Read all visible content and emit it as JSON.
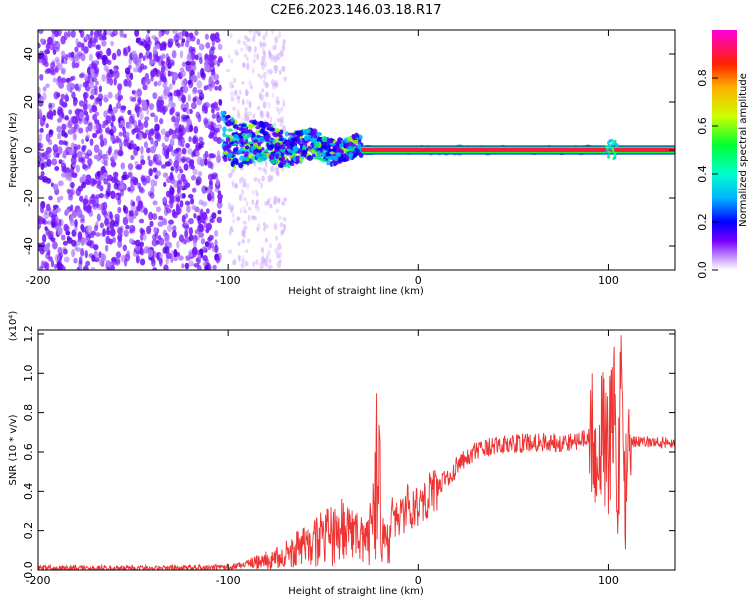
{
  "title": "C2E6.2023.146.03.18.R17",
  "chart_data": [
    {
      "type": "heatmap",
      "xlabel": "Height of straight line (km)",
      "ylabel": "Frequency (Hz)",
      "xlim": [
        -200,
        135
      ],
      "ylim": [
        -50,
        50
      ],
      "xticks": [
        -200,
        -100,
        0,
        100
      ],
      "yticks": [
        -40,
        -20,
        0,
        20,
        40
      ],
      "colorbar": {
        "label": "Normalized spectral amplitude",
        "range": [
          0.0,
          1.0
        ],
        "ticks": [
          0.0,
          0.2,
          0.4,
          0.6,
          0.8
        ],
        "colors": [
          "#ffffff",
          "#d9b3ff",
          "#8000ff",
          "#0000ff",
          "#00ccff",
          "#00ff66",
          "#ccff00",
          "#ffaa00",
          "#ff0000",
          "#ff00cc"
        ]
      },
      "carrier_frequency_hz": 0,
      "carrier_visible_from_km": -30
    },
    {
      "type": "line",
      "xlabel": "Height of straight line (km)",
      "ylabel": "SNR (10 * v/v)",
      "y_multiplier": "(x10⁴)",
      "xlim": [
        -200,
        135
      ],
      "ylim": [
        0,
        1.22
      ],
      "xticks": [
        -200,
        -100,
        0,
        100
      ],
      "yticks": [
        0.0,
        0.2,
        0.4,
        0.6,
        0.8,
        1.0,
        1.2
      ],
      "color": "#ee3333",
      "series": [
        {
          "x": [
            -200,
            -150,
            -110,
            -95,
            -85,
            -75,
            -65,
            -55,
            -45,
            -38,
            -32,
            -28,
            -24,
            -21,
            -19,
            -17,
            -15,
            -10,
            -5,
            0,
            5,
            10,
            15,
            20,
            25,
            30,
            40,
            50,
            60,
            70,
            80,
            90,
            95,
            100,
            103,
            105,
            107,
            109,
            112,
            120,
            135
          ],
          "y": [
            0.01,
            0.01,
            0.012,
            0.02,
            0.04,
            0.06,
            0.1,
            0.14,
            0.18,
            0.2,
            0.18,
            0.15,
            0.2,
            0.6,
            0.15,
            0.12,
            0.25,
            0.28,
            0.32,
            0.34,
            0.38,
            0.42,
            0.47,
            0.52,
            0.57,
            0.6,
            0.63,
            0.64,
            0.65,
            0.65,
            0.65,
            0.67,
            0.7,
            0.6,
            0.85,
            0.4,
            1.05,
            0.35,
            0.65,
            0.65,
            0.65
          ]
        }
      ]
    }
  ]
}
